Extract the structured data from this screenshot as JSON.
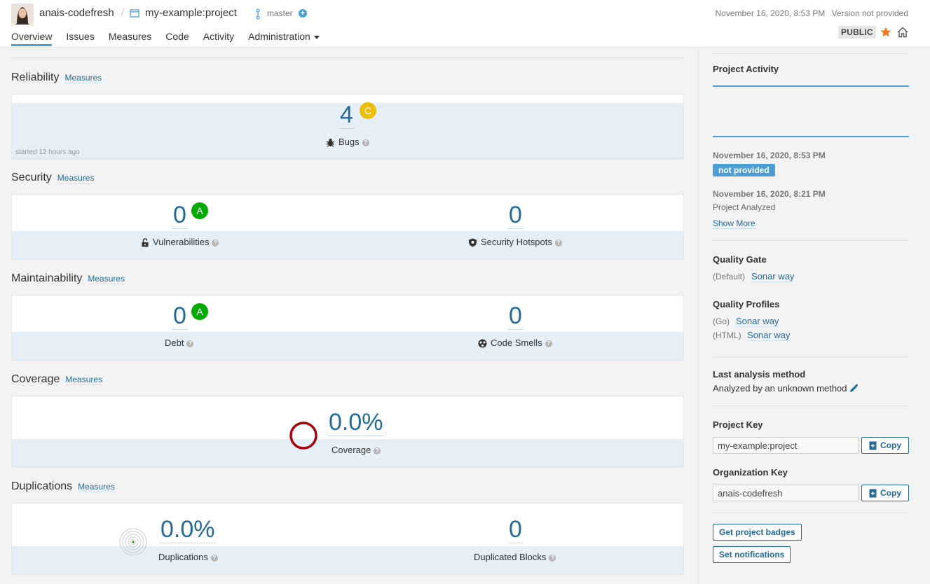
{
  "header": {
    "organization": "anais-codefresh",
    "separator": "/",
    "project": "my-example:project",
    "branch": "master",
    "branch_add": "+",
    "date": "November 16, 2020, 8:53 PM",
    "version": "Version not provided",
    "visibility": "PUBLIC"
  },
  "nav": {
    "tabs": [
      "Overview",
      "Issues",
      "Measures",
      "Code",
      "Activity",
      "Administration"
    ],
    "active": "Overview"
  },
  "reliability": {
    "title": "Reliability",
    "link": "Measures",
    "bugs_value": "4",
    "bugs_rating": "C",
    "bugs_label": "Bugs",
    "started": "started 12 hours ago"
  },
  "security": {
    "title": "Security",
    "link": "Measures",
    "vulnerabilities_value": "0",
    "vulnerabilities_rating": "A",
    "vulnerabilities_label": "Vulnerabilities",
    "hotspots_value": "0",
    "hotspots_label": "Security Hotspots"
  },
  "maintainability": {
    "title": "Maintainability",
    "link": "Measures",
    "debt_value": "0",
    "debt_rating": "A",
    "debt_label": "Debt",
    "smells_value": "0",
    "smells_label": "Code Smells"
  },
  "coverage": {
    "title": "Coverage",
    "link": "Measures",
    "value": "0.0%",
    "label": "Coverage"
  },
  "duplications": {
    "title": "Duplications",
    "link": "Measures",
    "value": "0.0%",
    "label": "Duplications",
    "blocks_value": "0",
    "blocks_label": "Duplicated Blocks"
  },
  "help_glyph": "?",
  "sidebar": {
    "activity_title": "Project Activity",
    "events": [
      {
        "date": "November 16, 2020, 8:53 PM",
        "badge": "not provided"
      },
      {
        "date": "November 16, 2020, 8:21 PM",
        "text": "Project Analyzed"
      }
    ],
    "show_more": "Show More",
    "quality_gate_title": "Quality Gate",
    "quality_gate_tag": "(Default)",
    "quality_gate_name": "Sonar way",
    "quality_profiles_title": "Quality Profiles",
    "profiles": [
      {
        "lang": "(Go)",
        "name": "Sonar way"
      },
      {
        "lang": "(HTML)",
        "name": "Sonar way"
      }
    ],
    "analysis_title": "Last analysis method",
    "analysis_text": "Analyzed by an unknown method",
    "project_key_title": "Project Key",
    "project_key": "my-example:project",
    "org_key_title": "Organization Key",
    "org_key": "anais-codefresh",
    "copy_label": "Copy",
    "badges_button": "Get project badges",
    "notifications_button": "Set notifications"
  },
  "colors": {
    "accent": "#4b9fd5",
    "link": "#236a97",
    "rating_a": "#00aa00",
    "rating_c": "#eabe06",
    "coverage_ring": "#a4030f"
  }
}
